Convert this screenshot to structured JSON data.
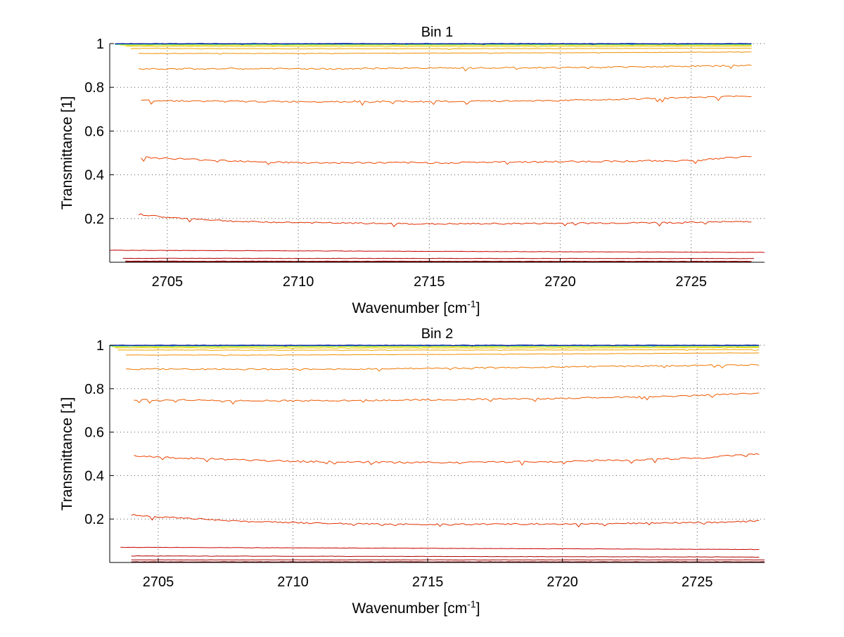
{
  "chart_data": [
    {
      "type": "line",
      "title": "Bin 1",
      "xlabel": "Wavenumber [cm",
      "xlabel_sup": "-1",
      "xlabel_end": "]",
      "ylabel": "Transmittance [1]",
      "xlim": [
        2702.8,
        2727.8
      ],
      "ylim": [
        0,
        1.0
      ],
      "xticks": [
        2705,
        2710,
        2715,
        2720,
        2725
      ],
      "yticks": [
        0.2,
        0.4,
        0.6,
        0.8,
        1
      ],
      "ytick_labels": [
        "0.2",
        "0.4",
        "0.6",
        "0.8",
        "1"
      ],
      "grid": true,
      "series": [
        {
          "color": "#7f0000",
          "x": [
            2703.4,
            2727.3
          ],
          "y": [
            0.003,
            0.003
          ]
        },
        {
          "color": "#a00000",
          "x": [
            2703.4,
            2727.3
          ],
          "y": [
            0.005,
            0.004
          ]
        },
        {
          "color": "#b00000",
          "x": [
            2703.3,
            2727.4
          ],
          "y": [
            0.018,
            0.017
          ]
        },
        {
          "color": "#c80000",
          "x": [
            2702.8,
            2727.8
          ],
          "y": [
            0.055,
            0.045
          ]
        },
        {
          "color": "#e03000",
          "x": [
            2703.9,
            2705,
            2708,
            2711,
            2715,
            2720,
            2725,
            2727.3
          ],
          "y": [
            0.22,
            0.205,
            0.185,
            0.18,
            0.175,
            0.178,
            0.182,
            0.187
          ]
        },
        {
          "color": "#ee4400",
          "x": [
            2704.0,
            2706,
            2710,
            2715,
            2720,
            2725,
            2727.3
          ],
          "y": [
            0.48,
            0.47,
            0.455,
            0.455,
            0.46,
            0.465,
            0.485
          ]
        },
        {
          "color": "#ee5a00",
          "x": [
            2704.0,
            2708,
            2712,
            2716,
            2720,
            2724,
            2727.3
          ],
          "y": [
            0.74,
            0.735,
            0.735,
            0.735,
            0.74,
            0.75,
            0.76
          ]
        },
        {
          "color": "#ee7700",
          "x": [
            2703.9,
            2708,
            2712,
            2716,
            2720,
            2724,
            2727.3
          ],
          "y": [
            0.885,
            0.885,
            0.885,
            0.89,
            0.89,
            0.895,
            0.9
          ]
        },
        {
          "color": "#f09000",
          "x": [
            2703.9,
            2710,
            2720,
            2727.3
          ],
          "y": [
            0.955,
            0.955,
            0.958,
            0.962
          ]
        },
        {
          "color": "#f0a800",
          "x": [
            2703.6,
            2710,
            2720,
            2727.3
          ],
          "y": [
            0.978,
            0.976,
            0.977,
            0.979
          ]
        },
        {
          "color": "#e8c800",
          "x": [
            2703.4,
            2710,
            2720,
            2727.3
          ],
          "y": [
            0.988,
            0.987,
            0.987,
            0.988
          ]
        },
        {
          "color": "#d8e000",
          "x": [
            2703.2,
            2727.3
          ],
          "y": [
            0.993,
            0.993
          ]
        },
        {
          "color": "#7fe060",
          "x": [
            2703.0,
            2727.3
          ],
          "y": [
            0.996,
            0.996
          ]
        },
        {
          "color": "#20c8c8",
          "x": [
            2703.0,
            2727.3
          ],
          "y": [
            0.998,
            0.998
          ]
        },
        {
          "color": "#0050d0",
          "x": [
            2703.0,
            2727.3
          ],
          "y": [
            0.999,
            0.999
          ]
        },
        {
          "color": "#00008f",
          "x": [
            2703.0,
            2727.3
          ],
          "y": [
            1.0,
            1.0
          ]
        }
      ]
    },
    {
      "type": "line",
      "title": "Bin 2",
      "xlabel": "Wavenumber [cm",
      "xlabel_sup": "-1",
      "xlabel_end": "]",
      "ylabel": "Transmittance [1]",
      "xlim": [
        2703.2,
        2727.5
      ],
      "ylim": [
        0,
        1.0
      ],
      "xticks": [
        2705,
        2710,
        2715,
        2720,
        2725
      ],
      "yticks": [
        0.2,
        0.4,
        0.6,
        0.8,
        1
      ],
      "ytick_labels": [
        "0.2",
        "0.4",
        "0.6",
        "0.8",
        "1"
      ],
      "grid": true,
      "series": [
        {
          "color": "#7f0000",
          "x": [
            2704.0,
            2727.5
          ],
          "y": [
            0.003,
            0.003
          ]
        },
        {
          "color": "#a00000",
          "x": [
            2704.0,
            2727.5
          ],
          "y": [
            0.012,
            0.012
          ]
        },
        {
          "color": "#b00000",
          "x": [
            2704.0,
            2727.3
          ],
          "y": [
            0.03,
            0.025
          ]
        },
        {
          "color": "#c80000",
          "x": [
            2703.6,
            2727.3
          ],
          "y": [
            0.07,
            0.06
          ]
        },
        {
          "color": "#e03000",
          "x": [
            2704.0,
            2705,
            2708,
            2711,
            2715,
            2720,
            2725,
            2727.3
          ],
          "y": [
            0.22,
            0.21,
            0.19,
            0.18,
            0.175,
            0.178,
            0.183,
            0.19
          ]
        },
        {
          "color": "#ee4400",
          "x": [
            2704.1,
            2706,
            2710,
            2715,
            2720,
            2725,
            2727.3
          ],
          "y": [
            0.49,
            0.48,
            0.465,
            0.46,
            0.465,
            0.48,
            0.5
          ]
        },
        {
          "color": "#ee5a00",
          "x": [
            2704.1,
            2708,
            2712,
            2716,
            2720,
            2724,
            2727.3
          ],
          "y": [
            0.75,
            0.745,
            0.745,
            0.75,
            0.755,
            0.765,
            0.78
          ]
        },
        {
          "color": "#ee7700",
          "x": [
            2703.8,
            2708,
            2712,
            2716,
            2720,
            2724,
            2727.3
          ],
          "y": [
            0.89,
            0.89,
            0.89,
            0.895,
            0.9,
            0.905,
            0.91
          ]
        },
        {
          "color": "#f09000",
          "x": [
            2703.8,
            2710,
            2720,
            2727.3
          ],
          "y": [
            0.955,
            0.955,
            0.96,
            0.965
          ]
        },
        {
          "color": "#f0a800",
          "x": [
            2703.5,
            2710,
            2720,
            2727.3
          ],
          "y": [
            0.978,
            0.977,
            0.978,
            0.98
          ]
        },
        {
          "color": "#e8c800",
          "x": [
            2703.4,
            2710,
            2720,
            2727.3
          ],
          "y": [
            0.988,
            0.987,
            0.987,
            0.989
          ]
        },
        {
          "color": "#d8e000",
          "x": [
            2703.3,
            2727.3
          ],
          "y": [
            0.993,
            0.993
          ]
        },
        {
          "color": "#7fe060",
          "x": [
            2703.2,
            2727.3
          ],
          "y": [
            0.996,
            0.996
          ]
        },
        {
          "color": "#20c8c8",
          "x": [
            2703.2,
            2727.3
          ],
          "y": [
            0.998,
            0.998
          ]
        },
        {
          "color": "#0050d0",
          "x": [
            2703.2,
            2727.3
          ],
          "y": [
            0.999,
            0.999
          ]
        },
        {
          "color": "#00008f",
          "x": [
            2703.2,
            2727.3
          ],
          "y": [
            1.0,
            1.0
          ]
        }
      ]
    }
  ]
}
